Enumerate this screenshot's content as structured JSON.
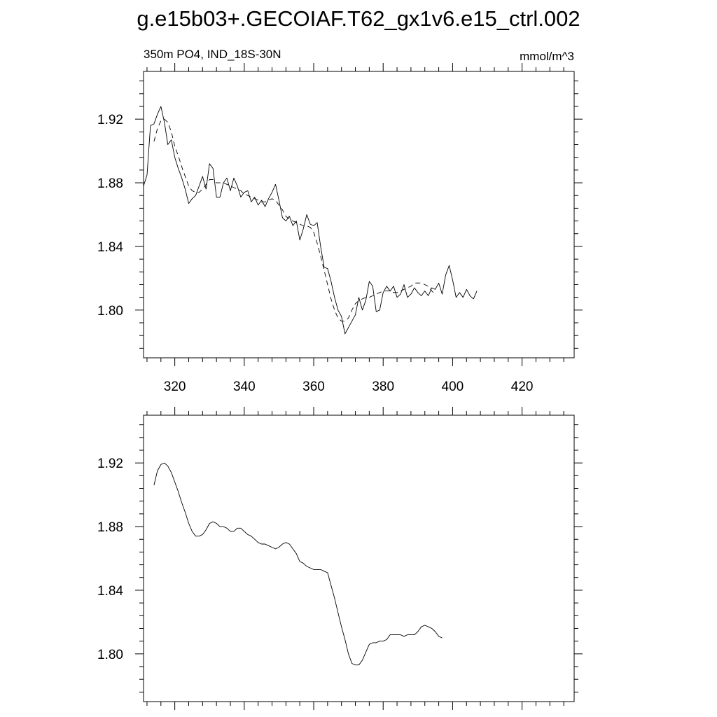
{
  "title": "g.e15b03+.GECOIAF.T62_gx1v6.e15_ctrl.002",
  "chart_data": [
    {
      "type": "line",
      "panel": "top",
      "left_label": "350m PO4, IND_18S-30N",
      "right_label": "mmol/m^3",
      "xlim": [
        311,
        435
      ],
      "ylim": [
        1.77,
        1.95
      ],
      "x_ticks": [
        320,
        340,
        360,
        380,
        400,
        420
      ],
      "x_tick_labels": [
        "320",
        "340",
        "360",
        "380",
        "400",
        "420"
      ],
      "y_ticks": [
        1.8,
        1.84,
        1.88,
        1.92
      ],
      "y_tick_labels": [
        "1.80",
        "1.84",
        "1.88",
        "1.92"
      ],
      "grid": false,
      "series": [
        {
          "style": "solid",
          "x_start": 311,
          "x_step": 1,
          "values": [
            1.878,
            1.885,
            1.916,
            1.917,
            1.923,
            1.928,
            1.918,
            1.904,
            1.907,
            1.896,
            1.889,
            1.883,
            1.876,
            1.867,
            1.87,
            1.872,
            1.878,
            1.884,
            1.876,
            1.892,
            1.889,
            1.871,
            1.871,
            1.88,
            1.883,
            1.875,
            1.883,
            1.878,
            1.871,
            1.874,
            1.875,
            1.868,
            1.871,
            1.866,
            1.869,
            1.865,
            1.87,
            1.874,
            1.879,
            1.869,
            1.858,
            1.856,
            1.859,
            1.853,
            1.856,
            1.844,
            1.851,
            1.86,
            1.854,
            1.853,
            1.855,
            1.84,
            1.827,
            1.826,
            1.818,
            1.808,
            1.8,
            1.796,
            1.785,
            1.789,
            1.793,
            1.797,
            1.808,
            1.8,
            1.806,
            1.818,
            1.815,
            1.799,
            1.8,
            1.811,
            1.815,
            1.812,
            1.815,
            1.808,
            1.81,
            1.816,
            1.808,
            1.81,
            1.814,
            1.811,
            1.809,
            1.812,
            1.809,
            1.814,
            1.813,
            1.817,
            1.81,
            1.822,
            1.828,
            1.819,
            1.808,
            1.811,
            1.808,
            1.813,
            1.809,
            1.807,
            1.812
          ]
        },
        {
          "style": "dashed",
          "x_start": 314,
          "x_step": 1,
          "values": [
            1.906,
            1.914,
            1.919,
            1.92,
            1.918,
            1.912,
            1.903,
            1.897,
            1.89,
            1.884,
            1.878,
            1.875,
            1.874,
            1.874,
            1.876,
            1.879,
            1.882,
            1.882,
            1.88,
            1.88,
            1.88,
            1.879,
            1.878,
            1.877,
            1.876,
            1.875,
            1.873,
            1.872,
            1.871,
            1.87,
            1.869,
            1.868,
            1.868,
            1.869,
            1.87,
            1.869,
            1.866,
            1.863,
            1.859,
            1.857,
            1.856,
            1.855,
            1.854,
            1.853,
            1.853,
            1.852,
            1.849,
            1.842,
            1.834,
            1.825,
            1.816,
            1.807,
            1.8,
            1.795,
            1.793,
            1.793,
            1.795,
            1.8,
            1.804,
            1.806,
            1.807,
            1.808,
            1.808,
            1.809,
            1.81,
            1.811,
            1.812,
            1.812,
            1.812,
            1.811,
            1.811,
            1.812,
            1.813,
            1.814,
            1.815,
            1.817,
            1.817,
            1.817,
            1.816,
            1.815,
            1.812,
            1.81
          ]
        }
      ]
    },
    {
      "type": "line",
      "panel": "bottom",
      "xlim": [
        311,
        435
      ],
      "ylim": [
        1.77,
        1.95
      ],
      "x_ticks": [
        320,
        340,
        360,
        380,
        400,
        420
      ],
      "y_ticks": [
        1.8,
        1.84,
        1.88,
        1.92
      ],
      "y_tick_labels": [
        "1.80",
        "1.84",
        "1.88",
        "1.92"
      ],
      "grid": false,
      "series": [
        {
          "style": "solid",
          "x_start": 314,
          "x_step": 1,
          "values": [
            1.906,
            1.915,
            1.919,
            1.92,
            1.918,
            1.914,
            1.908,
            1.902,
            1.895,
            1.889,
            1.882,
            1.877,
            1.874,
            1.874,
            1.875,
            1.878,
            1.882,
            1.883,
            1.882,
            1.88,
            1.88,
            1.879,
            1.877,
            1.877,
            1.879,
            1.879,
            1.877,
            1.875,
            1.874,
            1.872,
            1.87,
            1.869,
            1.869,
            1.868,
            1.867,
            1.866,
            1.867,
            1.869,
            1.87,
            1.869,
            1.866,
            1.863,
            1.858,
            1.857,
            1.855,
            1.854,
            1.853,
            1.853,
            1.853,
            1.852,
            1.851,
            1.843,
            1.835,
            1.826,
            1.817,
            1.809,
            1.8,
            1.794,
            1.793,
            1.793,
            1.796,
            1.801,
            1.806,
            1.807,
            1.807,
            1.808,
            1.808,
            1.809,
            1.812,
            1.812,
            1.812,
            1.812,
            1.811,
            1.812,
            1.812,
            1.812,
            1.814,
            1.817,
            1.818,
            1.817,
            1.816,
            1.814,
            1.811,
            1.81
          ]
        }
      ]
    }
  ]
}
